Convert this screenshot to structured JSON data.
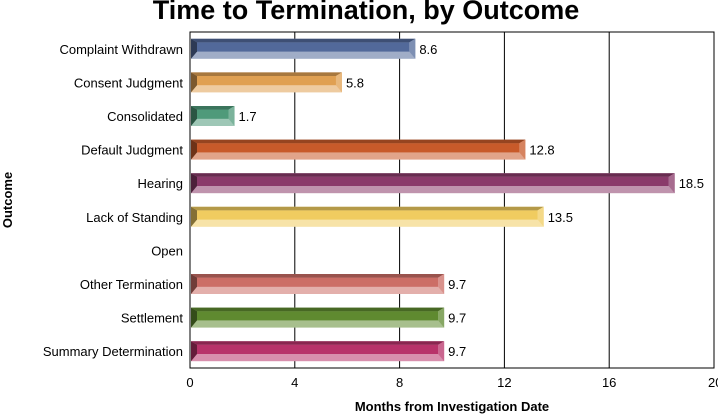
{
  "chart_data": {
    "type": "bar",
    "orientation": "horizontal",
    "title": "Time to Termination, by Outcome",
    "xlabel": "Months from Investigation Date",
    "ylabel": "Outcome",
    "xlim": [
      0,
      20
    ],
    "xticks": [
      "0",
      "4",
      "8",
      "12",
      "16",
      "20"
    ],
    "grid": "vertical",
    "categories": [
      "Complaint Withdrawn",
      "Consent Judgment",
      "Consolidated",
      "Default Judgment",
      "Hearing",
      "Lack of Standing",
      "Open",
      "Other Termination",
      "Settlement",
      "Summary Determination"
    ],
    "values": [
      8.6,
      5.8,
      1.7,
      12.8,
      18.5,
      13.5,
      null,
      9.7,
      9.7,
      9.7
    ],
    "data_labels": [
      "8.6",
      "5.8",
      "1.7",
      "12.8",
      "18.5",
      "13.5",
      "",
      "9.7",
      "9.7",
      "9.7"
    ],
    "colors": [
      "#52699a",
      "#e0a052",
      "#4f9a7a",
      "#c85a2a",
      "#8a3a6a",
      "#f0cc60",
      "#999999",
      "#cc6e66",
      "#5f8a30",
      "#b8336a"
    ]
  }
}
